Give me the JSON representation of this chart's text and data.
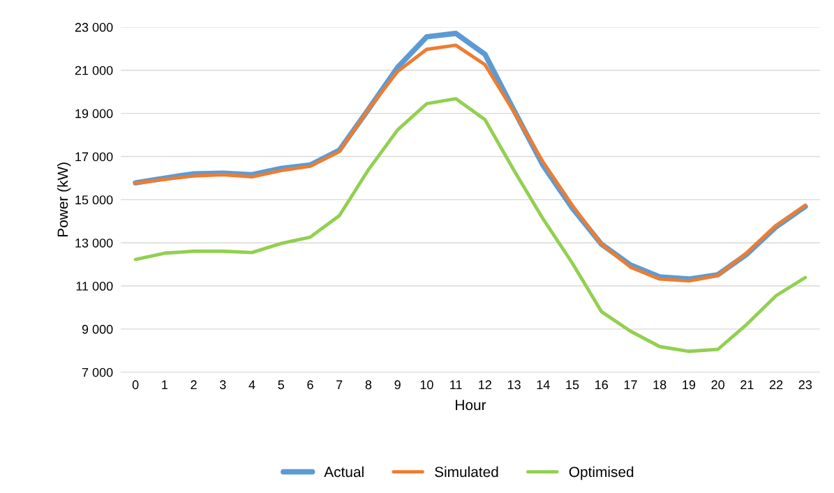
{
  "chart_data": {
    "type": "line",
    "xlabel": "Hour",
    "ylabel": "Power (kW)",
    "categories": [
      "0",
      "1",
      "2",
      "3",
      "4",
      "5",
      "6",
      "7",
      "8",
      "9",
      "10",
      "11",
      "12",
      "13",
      "14",
      "15",
      "16",
      "17",
      "18",
      "19",
      "20",
      "21",
      "22",
      "23"
    ],
    "series": [
      {
        "name": "Actual",
        "color": "#5b9bd5",
        "values": [
          15780,
          16000,
          16200,
          16230,
          16160,
          16450,
          16610,
          17290,
          19190,
          21130,
          22550,
          22710,
          21740,
          19130,
          16580,
          14610,
          12940,
          11970,
          11420,
          11320,
          11520,
          12480,
          13740,
          14680
        ]
      },
      {
        "name": "Simulated",
        "color": "#ed7d31",
        "values": [
          15770,
          15940,
          16100,
          16160,
          16060,
          16350,
          16550,
          17230,
          19190,
          20940,
          21970,
          22160,
          21260,
          19060,
          16740,
          14740,
          12940,
          11870,
          11320,
          11230,
          11480,
          12550,
          13810,
          14740
        ]
      },
      {
        "name": "Optimised",
        "color": "#92d050",
        "values": [
          12230,
          12520,
          12610,
          12610,
          12550,
          12970,
          13260,
          14260,
          16390,
          18230,
          19450,
          19680,
          18710,
          16350,
          14100,
          12060,
          9810,
          8900,
          8190,
          7970,
          8060,
          9230,
          10550,
          11390
        ]
      }
    ],
    "ylim": [
      7000,
      23000
    ],
    "yticks": [
      {
        "value": 7000,
        "label": "7 000"
      },
      {
        "value": 9000,
        "label": "9 000"
      },
      {
        "value": 11000,
        "label": "11 000"
      },
      {
        "value": 13000,
        "label": "13 000"
      },
      {
        "value": 15000,
        "label": "15 000"
      },
      {
        "value": 17000,
        "label": "17 000"
      },
      {
        "value": 19000,
        "label": "19 000"
      },
      {
        "value": 21000,
        "label": "21 000"
      },
      {
        "value": 23000,
        "label": "23 000"
      }
    ],
    "grid": "y",
    "legend": "bottom",
    "marker": "none",
    "line_style": "solid"
  }
}
